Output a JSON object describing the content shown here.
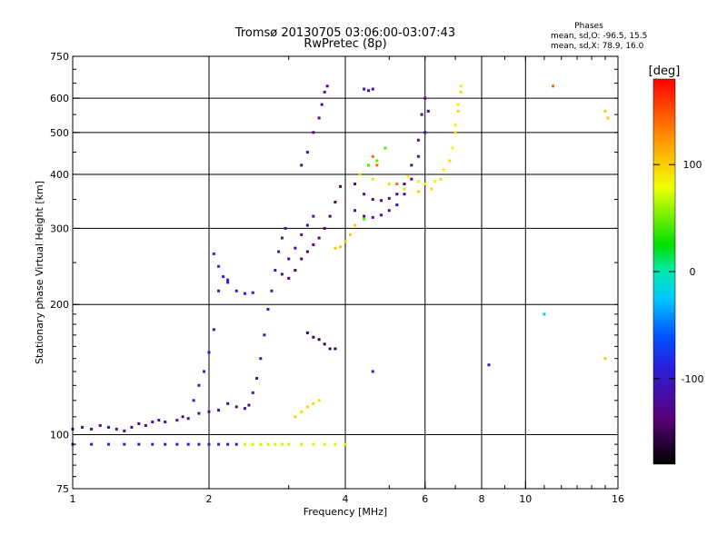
{
  "chart_data": {
    "type": "scatter",
    "title": "Tromsø 20130705 03:06:00-03:07:43",
    "subtitle": "RwPretec (8p)",
    "xlabel": "Frequency [MHz]",
    "ylabel": "Stationary phase Virtual Height [km]",
    "x_scale": "log",
    "y_scale": "log",
    "xlim": [
      1,
      16
    ],
    "ylim": [
      75,
      750
    ],
    "x_ticks": [
      1,
      2,
      4,
      6,
      8,
      10,
      16
    ],
    "y_ticks": [
      75,
      100,
      200,
      300,
      400,
      500,
      600,
      750
    ],
    "grid": true,
    "stats": {
      "header": "Phases",
      "line_o": "mean, sd,O: -96.5, 15.5",
      "line_x": "mean, sd,X:  78.9, 16.0"
    },
    "colorbar": {
      "label": "[deg]",
      "range": [
        -180,
        180
      ],
      "ticks": [
        100,
        0,
        -100
      ]
    },
    "series": [
      {
        "color_value": -95,
        "points": [
          [
            1.0,
            95
          ],
          [
            1.1,
            95
          ],
          [
            1.2,
            95
          ],
          [
            1.3,
            95
          ],
          [
            1.4,
            95
          ],
          [
            1.5,
            95
          ],
          [
            1.6,
            95
          ],
          [
            1.7,
            95
          ],
          [
            1.8,
            95
          ],
          [
            1.9,
            95
          ],
          [
            2.0,
            95
          ],
          [
            2.1,
            95
          ],
          [
            2.2,
            95
          ],
          [
            2.3,
            95
          ]
        ]
      },
      {
        "color_value": -120,
        "points": [
          [
            1.0,
            103
          ],
          [
            1.05,
            104
          ],
          [
            1.1,
            103
          ],
          [
            1.15,
            105
          ],
          [
            1.2,
            104
          ],
          [
            1.25,
            103
          ],
          [
            1.3,
            102
          ],
          [
            1.35,
            104
          ],
          [
            1.4,
            106
          ],
          [
            1.45,
            105
          ],
          [
            1.5,
            107
          ],
          [
            1.55,
            108
          ],
          [
            1.6,
            107
          ],
          [
            1.7,
            108
          ],
          [
            1.75,
            110
          ],
          [
            1.8,
            109
          ],
          [
            1.9,
            112
          ],
          [
            2.0,
            113
          ],
          [
            2.1,
            114
          ],
          [
            2.2,
            118
          ],
          [
            2.3,
            116
          ],
          [
            2.4,
            115
          ],
          [
            2.45,
            117
          ]
        ]
      },
      {
        "color_value": -95,
        "points": [
          [
            1.85,
            120
          ],
          [
            1.9,
            130
          ],
          [
            1.95,
            140
          ],
          [
            2.0,
            155
          ],
          [
            2.05,
            175
          ],
          [
            2.1,
            215
          ],
          [
            2.2,
            225
          ],
          [
            2.3,
            215
          ],
          [
            2.4,
            212
          ],
          [
            2.5,
            213
          ]
        ]
      },
      {
        "color_value": -80,
        "points": [
          [
            2.05,
            262
          ],
          [
            2.1,
            245
          ],
          [
            2.15,
            232
          ],
          [
            2.2,
            228
          ]
        ]
      },
      {
        "color_value": -110,
        "points": [
          [
            2.5,
            125
          ],
          [
            2.55,
            135
          ],
          [
            2.6,
            150
          ],
          [
            2.65,
            170
          ],
          [
            2.7,
            195
          ],
          [
            2.75,
            215
          ],
          [
            2.8,
            240
          ],
          [
            2.85,
            265
          ],
          [
            2.9,
            285
          ],
          [
            2.95,
            300
          ]
        ]
      },
      {
        "color_value": -120,
        "points": [
          [
            2.9,
            235
          ],
          [
            3.0,
            255
          ],
          [
            3.1,
            270
          ],
          [
            3.2,
            290
          ],
          [
            3.3,
            305
          ],
          [
            3.4,
            320
          ]
        ]
      },
      {
        "color_value": -140,
        "points": [
          [
            3.0,
            230
          ],
          [
            3.1,
            240
          ],
          [
            3.2,
            255
          ],
          [
            3.3,
            265
          ],
          [
            3.4,
            275
          ],
          [
            3.5,
            285
          ],
          [
            3.6,
            300
          ],
          [
            3.7,
            320
          ],
          [
            3.8,
            345
          ],
          [
            3.9,
            375
          ]
        ]
      },
      {
        "color_value": -125,
        "points": [
          [
            3.2,
            420
          ],
          [
            3.3,
            450
          ],
          [
            3.4,
            500
          ],
          [
            3.5,
            540
          ],
          [
            3.55,
            580
          ],
          [
            3.6,
            620
          ],
          [
            3.65,
            640
          ]
        ]
      },
      {
        "color_value": -150,
        "points": [
          [
            3.3,
            172
          ],
          [
            3.4,
            168
          ],
          [
            3.5,
            166
          ],
          [
            3.6,
            162
          ],
          [
            3.7,
            158
          ],
          [
            3.8,
            158
          ]
        ]
      },
      {
        "color_value": 70,
        "points": [
          [
            2.4,
            95
          ],
          [
            2.5,
            95
          ],
          [
            2.6,
            95
          ],
          [
            2.7,
            95
          ],
          [
            2.8,
            95
          ],
          [
            2.9,
            95
          ],
          [
            3.0,
            95
          ],
          [
            3.2,
            95
          ],
          [
            3.4,
            95
          ],
          [
            3.6,
            95
          ],
          [
            3.8,
            95
          ],
          [
            4.0,
            95
          ]
        ]
      },
      {
        "color_value": 95,
        "points": [
          [
            3.1,
            110
          ],
          [
            3.2,
            113
          ],
          [
            3.3,
            116
          ],
          [
            3.4,
            118
          ],
          [
            3.5,
            120
          ]
        ]
      },
      {
        "color_value": 100,
        "points": [
          [
            3.8,
            270
          ],
          [
            3.9,
            272
          ],
          [
            4.0,
            280
          ],
          [
            4.1,
            290
          ],
          [
            4.2,
            305
          ]
        ]
      },
      {
        "color_value": -115,
        "points": [
          [
            4.2,
            330
          ],
          [
            4.4,
            320
          ],
          [
            4.6,
            318
          ],
          [
            4.8,
            322
          ],
          [
            5.0,
            330
          ],
          [
            5.2,
            340
          ],
          [
            5.4,
            360
          ],
          [
            5.6,
            390
          ],
          [
            5.8,
            440
          ],
          [
            6.0,
            500
          ],
          [
            6.1,
            560
          ]
        ]
      },
      {
        "color_value": -125,
        "points": [
          [
            4.2,
            380
          ],
          [
            4.4,
            360
          ],
          [
            4.6,
            350
          ],
          [
            4.8,
            348
          ],
          [
            5.0,
            352
          ],
          [
            5.2,
            360
          ],
          [
            5.4,
            380
          ],
          [
            5.6,
            420
          ],
          [
            5.8,
            480
          ],
          [
            5.9,
            550
          ],
          [
            6.0,
            600
          ]
        ]
      },
      {
        "color_value": 95,
        "points": [
          [
            4.3,
            400
          ],
          [
            4.6,
            390
          ],
          [
            5.0,
            380
          ],
          [
            5.4,
            370
          ],
          [
            5.8,
            365
          ],
          [
            6.2,
            370
          ],
          [
            6.5,
            390
          ],
          [
            6.8,
            430
          ],
          [
            7.0,
            500
          ],
          [
            7.1,
            560
          ],
          [
            7.2,
            620
          ]
        ]
      },
      {
        "color_value": 85,
        "points": [
          [
            5.5,
            395
          ],
          [
            5.8,
            385
          ],
          [
            6.0,
            380
          ],
          [
            6.3,
            385
          ],
          [
            6.6,
            410
          ],
          [
            6.9,
            460
          ],
          [
            7.0,
            520
          ],
          [
            7.1,
            580
          ],
          [
            7.2,
            640
          ]
        ]
      },
      {
        "color_value": 45,
        "points": [
          [
            4.4,
            315
          ],
          [
            4.5,
            420
          ],
          [
            4.7,
            430
          ],
          [
            4.9,
            460
          ]
        ]
      },
      {
        "color_value": 140,
        "points": [
          [
            4.6,
            440
          ],
          [
            4.7,
            420
          ],
          [
            5.2,
            380
          ],
          [
            11.5,
            640
          ]
        ]
      },
      {
        "color_value": -110,
        "points": [
          [
            4.4,
            630
          ],
          [
            4.5,
            625
          ],
          [
            4.6,
            630
          ],
          [
            4.6,
            140
          ],
          [
            8.3,
            145
          ]
        ]
      },
      {
        "color_value": -20,
        "points": [
          [
            11.0,
            190
          ]
        ]
      },
      {
        "color_value": 100,
        "points": [
          [
            15.0,
            560
          ],
          [
            15.2,
            540
          ],
          [
            15.0,
            150
          ]
        ]
      }
    ]
  }
}
